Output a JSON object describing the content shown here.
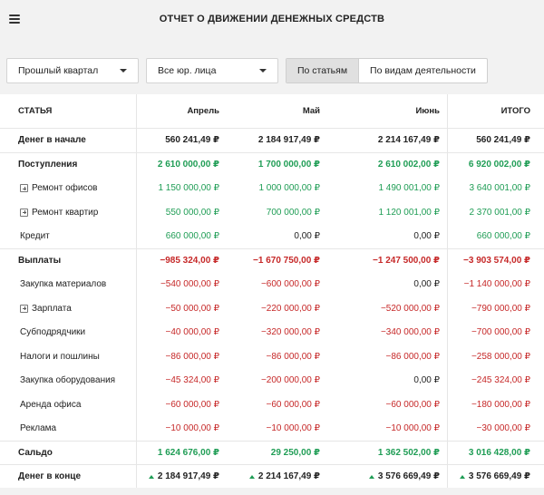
{
  "header": {
    "title": "ОТЧЕТ О ДВИЖЕНИИ ДЕНЕЖНЫХ СРЕДСТВ"
  },
  "filters": {
    "period": "Прошлый квартал",
    "entity": "Все юр. лица",
    "view_tabs": [
      "По статьям",
      "По видам деятельности"
    ]
  },
  "table": {
    "headers": [
      "СТАТЬЯ",
      "Апрель",
      "Май",
      "Июнь",
      "ИТОГО"
    ],
    "rows": [
      {
        "label": "Денег в начале",
        "values": [
          "560 241,49 ₽",
          "2 184 917,49 ₽",
          "2 214 167,49 ₽",
          "560 241,49 ₽"
        ]
      },
      {
        "label": "Поступления",
        "values": [
          "2 610 000,00 ₽",
          "1 700 000,00 ₽",
          "2 610 002,00 ₽",
          "6 920 002,00 ₽"
        ]
      },
      {
        "label": "Ремонт офисов",
        "values": [
          "1 150 000,00 ₽",
          "1 000 000,00 ₽",
          "1 490 001,00 ₽",
          "3 640 001,00 ₽"
        ]
      },
      {
        "label": "Ремонт квартир",
        "values": [
          "550 000,00 ₽",
          "700 000,00 ₽",
          "1 120 001,00 ₽",
          "2 370 001,00 ₽"
        ]
      },
      {
        "label": "Кредит",
        "values": [
          "660 000,00 ₽",
          "0,00 ₽",
          "0,00 ₽",
          "660 000,00 ₽"
        ]
      },
      {
        "label": "Выплаты",
        "values": [
          "−985 324,00 ₽",
          "−1 670 750,00 ₽",
          "−1 247 500,00 ₽",
          "−3 903 574,00 ₽"
        ]
      },
      {
        "label": "Закупка материалов",
        "values": [
          "−540 000,00 ₽",
          "−600 000,00 ₽",
          "0,00 ₽",
          "−1 140 000,00 ₽"
        ]
      },
      {
        "label": "Зарплата",
        "values": [
          "−50 000,00 ₽",
          "−220 000,00 ₽",
          "−520 000,00 ₽",
          "−790 000,00 ₽"
        ]
      },
      {
        "label": "Субподрядчики",
        "values": [
          "−40 000,00 ₽",
          "−320 000,00 ₽",
          "−340 000,00 ₽",
          "−700 000,00 ₽"
        ]
      },
      {
        "label": "Налоги и пошлины",
        "values": [
          "−86 000,00 ₽",
          "−86 000,00 ₽",
          "−86 000,00 ₽",
          "−258 000,00 ₽"
        ]
      },
      {
        "label": "Закупка оборудования",
        "values": [
          "−45 324,00 ₽",
          "−200 000,00 ₽",
          "0,00 ₽",
          "−245 324,00 ₽"
        ]
      },
      {
        "label": "Аренда офиса",
        "values": [
          "−60 000,00 ₽",
          "−60 000,00 ₽",
          "−60 000,00 ₽",
          "−180 000,00 ₽"
        ]
      },
      {
        "label": "Реклама",
        "values": [
          "−10 000,00 ₽",
          "−10 000,00 ₽",
          "−10 000,00 ₽",
          "−30 000,00 ₽"
        ]
      },
      {
        "label": "Сальдо",
        "values": [
          "1 624 676,00 ₽",
          "29 250,00 ₽",
          "1 362 502,00 ₽",
          "3 016 428,00 ₽"
        ]
      },
      {
        "label": "Денег в конце",
        "values": [
          "2 184 917,49 ₽",
          "2 214 167,49 ₽",
          "3 576 669,49 ₽",
          "3 576 669,49 ₽"
        ]
      }
    ]
  },
  "colors": {
    "positive": "#1f9d55",
    "negative": "#c62828",
    "header_bg": "#f2f2f2"
  }
}
